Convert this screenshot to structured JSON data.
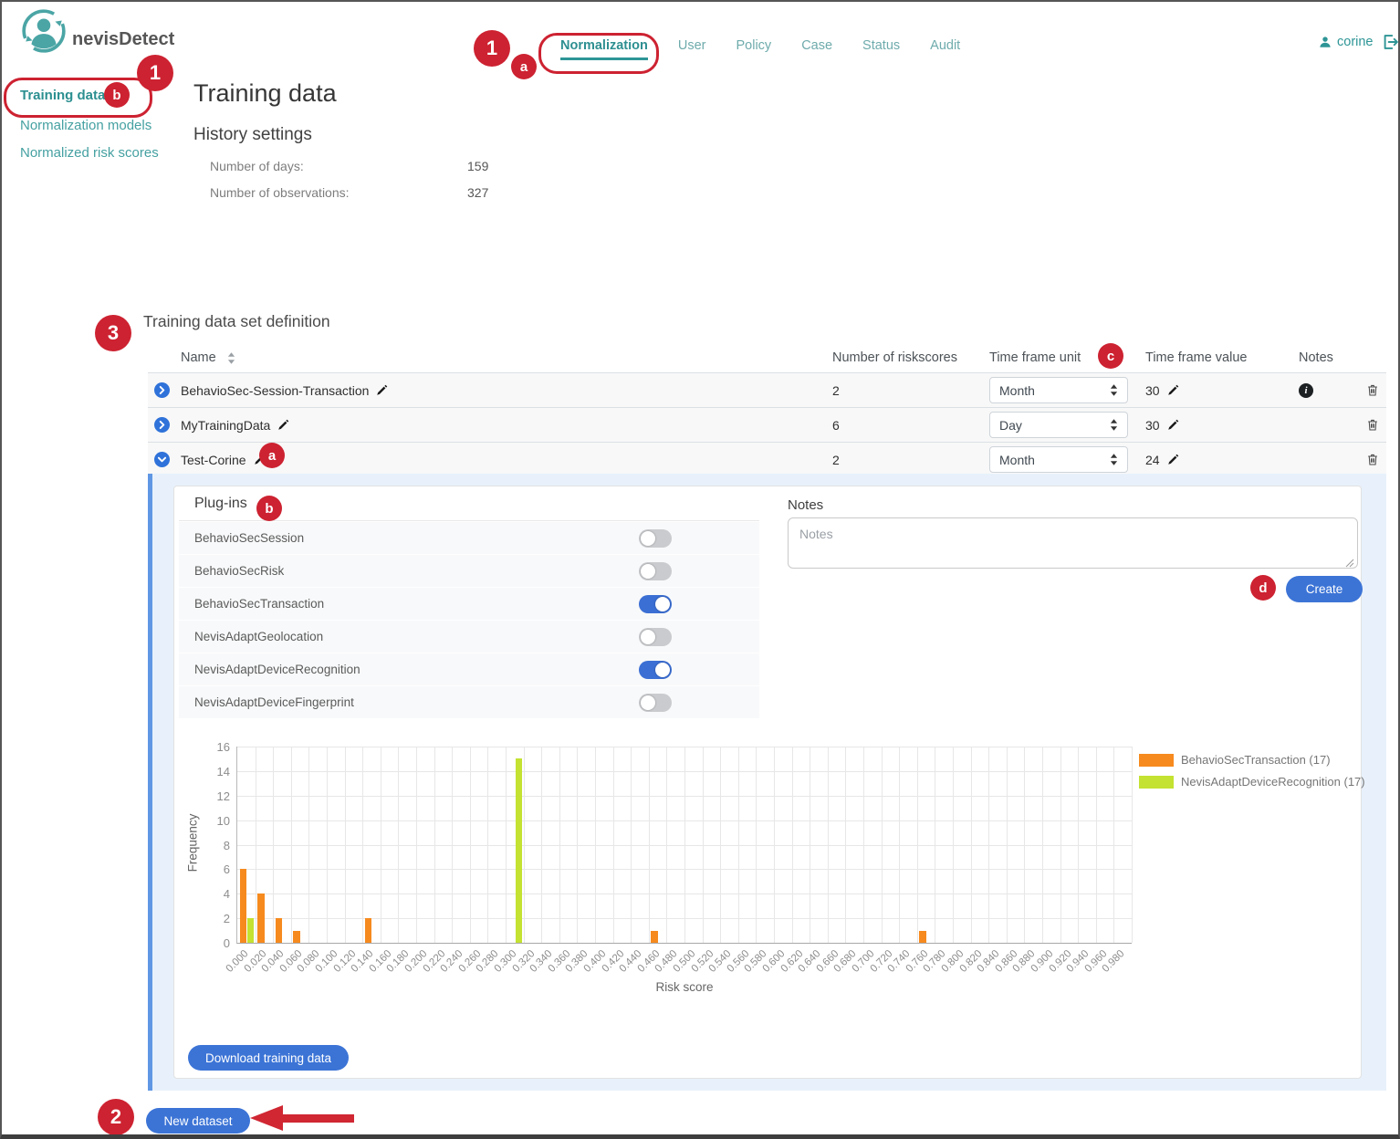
{
  "colors": {
    "accent_teal": "#2e9596",
    "primary_blue": "#3c74d6",
    "annotation_red": "#cd2231",
    "panel_background": "#e8f1fb",
    "bar_orange": "#f68a1e",
    "bar_green": "#c3e231"
  },
  "brand": {
    "name": "nevisDetect"
  },
  "header": {
    "user": "corine",
    "nav": [
      {
        "label": "Normalization",
        "active": true
      },
      {
        "label": "User",
        "active": false
      },
      {
        "label": "Policy",
        "active": false
      },
      {
        "label": "Case",
        "active": false
      },
      {
        "label": "Status",
        "active": false
      },
      {
        "label": "Audit",
        "active": false
      }
    ]
  },
  "sidebar": {
    "items": [
      {
        "label": "Training data",
        "active": true
      },
      {
        "label": "Normalization models",
        "active": false
      },
      {
        "label": "Normalized risk scores",
        "active": false
      }
    ]
  },
  "page": {
    "title": "Training data",
    "history": {
      "heading": "History settings",
      "fields": [
        {
          "label": "Number of days:",
          "value": "159"
        },
        {
          "label": "Number of observations:",
          "value": "327"
        }
      ]
    }
  },
  "dataset": {
    "heading": "Training data set definition",
    "columns": {
      "name": "Name",
      "riskscores": "Number of riskscores",
      "time_frame_unit": "Time frame unit",
      "time_frame_value": "Time frame value",
      "notes": "Notes"
    },
    "rows": [
      {
        "name": "BehavioSec-Session-Transaction",
        "riskscores": "2",
        "time_frame_unit": "Month",
        "time_frame_value": "30",
        "has_note": true,
        "expanded": false
      },
      {
        "name": "MyTrainingData",
        "riskscores": "6",
        "time_frame_unit": "Day",
        "time_frame_value": "30",
        "has_note": false,
        "expanded": false
      },
      {
        "name": "Test-Corine",
        "riskscores": "2",
        "time_frame_unit": "Month",
        "time_frame_value": "24",
        "has_note": false,
        "expanded": true
      }
    ]
  },
  "panel": {
    "plugins_heading": "Plug-ins",
    "plugins": [
      {
        "name": "BehavioSecSession",
        "enabled": false
      },
      {
        "name": "BehavioSecRisk",
        "enabled": false
      },
      {
        "name": "BehavioSecTransaction",
        "enabled": true
      },
      {
        "name": "NevisAdaptGeolocation",
        "enabled": false
      },
      {
        "name": "NevisAdaptDeviceRecognition",
        "enabled": true
      },
      {
        "name": "NevisAdaptDeviceFingerprint",
        "enabled": false
      }
    ],
    "notes_label": "Notes",
    "notes_placeholder": "Notes",
    "create_label": "Create",
    "download_label": "Download training data"
  },
  "footer": {
    "new_dataset_label": "New dataset"
  },
  "annotations": {
    "nav_step": "1",
    "nav_sub": "a",
    "sidebar_step": "1",
    "sidebar_sub": "b",
    "section_step": "3",
    "row_sub": "a",
    "plugins_sub": "b",
    "column_sub": "c",
    "create_sub": "d",
    "footer_step": "2"
  },
  "chart_data": {
    "type": "bar",
    "title": "",
    "xlabel": "Risk score",
    "ylabel": "Frequency",
    "ylim": [
      0,
      16
    ],
    "y_ticks": [
      0,
      2,
      4,
      6,
      8,
      10,
      12,
      14,
      16
    ],
    "bin_width": 0.02,
    "grid": true,
    "legend_position": "top-right",
    "x_ticks": [
      "0.000",
      "0.020",
      "0.040",
      "0.060",
      "0.080",
      "0.100",
      "0.120",
      "0.140",
      "0.160",
      "0.180",
      "0.200",
      "0.220",
      "0.240",
      "0.260",
      "0.280",
      "0.300",
      "0.320",
      "0.340",
      "0.360",
      "0.380",
      "0.400",
      "0.420",
      "0.440",
      "0.460",
      "0.480",
      "0.500",
      "0.520",
      "0.540",
      "0.560",
      "0.580",
      "0.600",
      "0.620",
      "0.640",
      "0.660",
      "0.680",
      "0.700",
      "0.720",
      "0.740",
      "0.760",
      "0.780",
      "0.800",
      "0.820",
      "0.840",
      "0.860",
      "0.880",
      "0.900",
      "0.920",
      "0.940",
      "0.960",
      "0.980"
    ],
    "series": [
      {
        "name": "BehavioSecTransaction (17)",
        "color": "#f68a1e",
        "data": [
          {
            "x": 0.0,
            "y": 6
          },
          {
            "x": 0.02,
            "y": 4
          },
          {
            "x": 0.04,
            "y": 2
          },
          {
            "x": 0.06,
            "y": 1
          },
          {
            "x": 0.14,
            "y": 2
          },
          {
            "x": 0.46,
            "y": 1
          },
          {
            "x": 0.76,
            "y": 1
          }
        ]
      },
      {
        "name": "NevisAdaptDeviceRecognition (17)",
        "color": "#c3e231",
        "data": [
          {
            "x": 0.0,
            "y": 2
          },
          {
            "x": 0.3,
            "y": 15
          }
        ]
      }
    ]
  }
}
